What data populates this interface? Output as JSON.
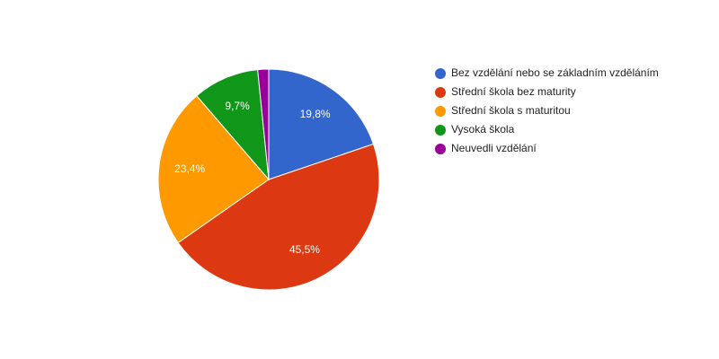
{
  "chart_data": {
    "type": "pie",
    "categories": [
      "Bez vzdělání nebo se základním vzděláním",
      "Střední škola bez maturity",
      "Střední škola s maturitou",
      "Vysoká škola",
      "Neuvedli vzdělání"
    ],
    "values": [
      19.8,
      45.5,
      23.4,
      9.7,
      1.6
    ],
    "value_labels": [
      "19,8%",
      "45,5%",
      "23,4%",
      "9,7%",
      null
    ],
    "colors": [
      "#3366cc",
      "#dc3912",
      "#ff9900",
      "#109618",
      "#990099"
    ],
    "legend": "right"
  }
}
